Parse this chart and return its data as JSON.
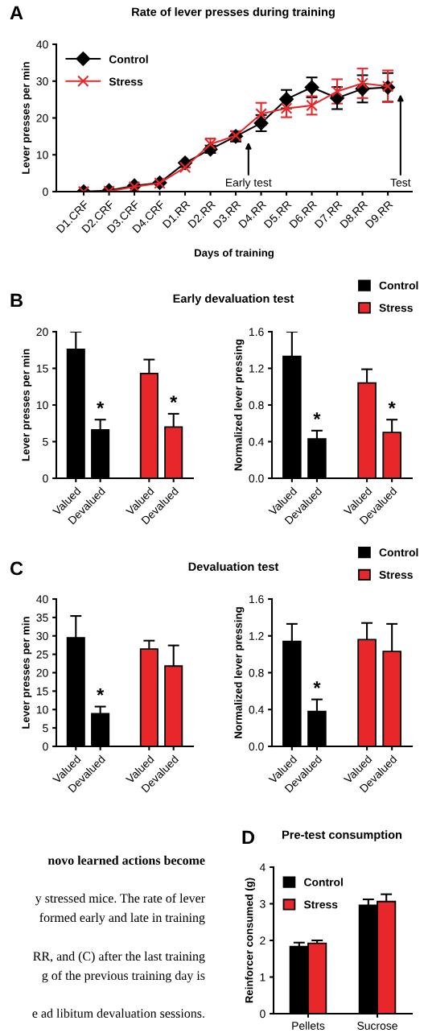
{
  "chart_data": [
    {
      "type": "line",
      "title": "Rate of lever presses during training",
      "xlabel": "Days of training",
      "ylabel": "Lever presses per min",
      "categories": [
        "D1.CRF",
        "D2.CRF",
        "D3.CRF",
        "D4.CRF",
        "D1.RR",
        "D2.RR",
        "D3.RR",
        "D4.RR",
        "D5.RR",
        "D6.RR",
        "D7.RR",
        "D8.RR",
        "D9.RR"
      ],
      "ylim": [
        0,
        40
      ],
      "yticks": [
        0,
        10,
        20,
        30,
        40
      ],
      "legend": "top left",
      "annotations": [
        "A",
        "Early test",
        "Test"
      ],
      "series": [
        {
          "name": "Control",
          "color": "#000000",
          "marker": "diamond",
          "values": [
            0,
            0.3,
            1.6,
            2.4,
            7.8,
            11.5,
            15.0,
            18.6,
            25.1,
            28.3,
            25.4,
            27.9,
            28.3
          ],
          "errors": [
            null,
            null,
            null,
            null,
            null,
            1.0,
            1.4,
            2.2,
            2.5,
            2.7,
            3.0,
            3.7,
            3.9
          ]
        },
        {
          "name": "Stress",
          "color": "#e8272a",
          "marker": "cross",
          "values": [
            0,
            0.1,
            1.3,
            2.3,
            6.6,
            12.9,
            15.2,
            21.1,
            22.6,
            23.4,
            27.2,
            29.4,
            28.6
          ],
          "errors": [
            null,
            null,
            null,
            null,
            null,
            1.5,
            1.2,
            3.0,
            2.4,
            2.5,
            3.3,
            4.0,
            4.3
          ]
        }
      ]
    },
    {
      "type": "bar",
      "title": "Early devaluation test",
      "ylabel": "Lever presses per min",
      "categories": [
        "Valued",
        "Devalued",
        null,
        "Valued",
        "Devalued"
      ],
      "ylim": [
        0,
        20
      ],
      "yticks": [
        0,
        5,
        10,
        15,
        20
      ],
      "annotations": [
        "B"
      ],
      "series": [
        {
          "color": "#000000",
          "values": [
            17.6,
            6.6,
            null,
            null,
            null
          ],
          "errors": [
            2.4,
            1.4,
            null,
            null,
            null
          ],
          "value_labels": [
            null,
            "*",
            null,
            null,
            null
          ]
        },
        {
          "color": "#e8272a",
          "values": [
            null,
            null,
            null,
            14.3,
            7.0
          ],
          "errors": [
            null,
            null,
            null,
            1.9,
            1.8
          ],
          "value_labels": [
            null,
            null,
            null,
            null,
            "*"
          ]
        }
      ]
    },
    {
      "type": "bar",
      "ylabel": "Normalized lever pressing",
      "categories": [
        "Valued",
        "Devalued",
        null,
        "Valued",
        "Devalued"
      ],
      "ylim": [
        0,
        1.6
      ],
      "yticks": [
        {
          "value": 0,
          "label": "0.0"
        },
        0.4,
        0.8,
        1.2,
        1.6
      ],
      "legend": "top right",
      "series": [
        {
          "name": "Control",
          "color": "#000000",
          "values": [
            1.33,
            0.43,
            null,
            null,
            null
          ],
          "errors": [
            0.27,
            0.09,
            null,
            null,
            null
          ],
          "value_labels": [
            null,
            "*",
            null,
            null,
            null
          ]
        },
        {
          "name": "Stress",
          "color": "#e8272a",
          "values": [
            null,
            null,
            null,
            1.04,
            0.5
          ],
          "errors": [
            null,
            null,
            null,
            0.15,
            0.14
          ],
          "value_labels": [
            null,
            null,
            null,
            null,
            "*"
          ]
        }
      ]
    },
    {
      "type": "bar",
      "title": "Devaluation test",
      "ylabel": "Lever presses per min",
      "categories": [
        "Valued",
        "Devalued",
        null,
        "Valued",
        "Devalued"
      ],
      "ylim": [
        0,
        40
      ],
      "yticks": [
        0,
        5,
        10,
        15,
        20,
        25,
        30,
        35,
        40
      ],
      "annotations": [
        "C"
      ],
      "series": [
        {
          "color": "#000000",
          "values": [
            29.5,
            8.9,
            null,
            null,
            null
          ],
          "errors": [
            5.9,
            1.9,
            null,
            null,
            null
          ],
          "value_labels": [
            null,
            "*",
            null,
            null,
            null
          ]
        },
        {
          "color": "#e8272a",
          "values": [
            null,
            null,
            null,
            26.4,
            21.8
          ],
          "errors": [
            null,
            null,
            null,
            2.3,
            5.6
          ]
        }
      ]
    },
    {
      "type": "bar",
      "ylabel": "Normalized lever pressing",
      "categories": [
        "Valued",
        "Devalued",
        null,
        "Valued",
        "Devalued"
      ],
      "ylim": [
        0,
        1.6
      ],
      "yticks": [
        {
          "value": 0,
          "label": "0.0"
        },
        0.4,
        0.8,
        1.2,
        1.6
      ],
      "legend": "top right",
      "series": [
        {
          "name": "Control",
          "color": "#000000",
          "values": [
            1.14,
            0.38,
            null,
            null,
            null
          ],
          "errors": [
            0.19,
            0.13,
            null,
            null,
            null
          ],
          "value_labels": [
            null,
            "*",
            null,
            null,
            null
          ]
        },
        {
          "name": "Stress",
          "color": "#e8272a",
          "values": [
            null,
            null,
            null,
            1.16,
            1.03
          ],
          "errors": [
            null,
            null,
            null,
            0.18,
            0.3
          ]
        }
      ]
    },
    {
      "type": "bar",
      "title": "Pre-test consumption",
      "ylabel": "Reinforcer consumed (g)",
      "categories": [
        "Pellets",
        "Sucrose"
      ],
      "ylim": [
        0,
        4
      ],
      "yticks": [
        0,
        1,
        2,
        3,
        4
      ],
      "legend": "top left",
      "annotations": [
        "D"
      ],
      "series": [
        {
          "name": "Control",
          "color": "#000000",
          "values": [
            1.83,
            2.96
          ],
          "errors": [
            0.11,
            0.16
          ]
        },
        {
          "name": "Stress",
          "color": "#e8272a",
          "values": [
            1.92,
            3.06
          ],
          "errors": [
            0.08,
            0.2
          ]
        }
      ]
    },
    {
      "type": "other",
      "annotations": [
        "novo learned actions become",
        "y stressed mice. The rate of lever",
        "formed early and late in training",
        "RR, and (C) after the last training",
        "g of the previous training day is",
        "e ad libitum devaluation sessions."
      ]
    }
  ]
}
